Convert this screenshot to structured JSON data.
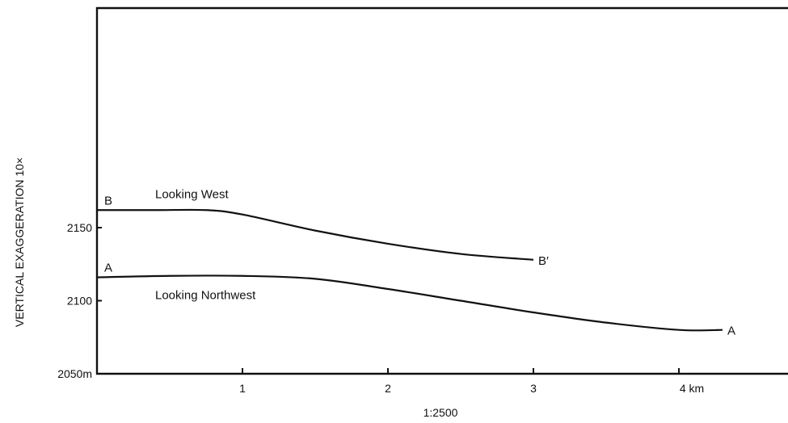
{
  "chart_data": {
    "type": "line",
    "title": "",
    "xlabel": "1:2500",
    "ylabel": "VERTICAL EXAGGERATION 10×",
    "xlim": [
      0,
      4.75
    ],
    "ylim": [
      2050,
      2250
    ],
    "x_ticks": [
      {
        "value": 1,
        "label": "1"
      },
      {
        "value": 2,
        "label": "2"
      },
      {
        "value": 3,
        "label": "3"
      },
      {
        "value": 4,
        "label": "4 km"
      }
    ],
    "y_ticks": [
      {
        "value": 2050,
        "label": "2050m"
      },
      {
        "value": 2100,
        "label": "2100"
      },
      {
        "value": 2150,
        "label": "2150"
      }
    ],
    "grid": false,
    "series": [
      {
        "name": "Looking West",
        "start_label": "B",
        "end_label": "B′",
        "color": "#111111",
        "x": [
          0,
          0.4,
          0.75,
          1.0,
          1.5,
          2.0,
          2.5,
          3.0
        ],
        "y": [
          2162,
          2162,
          2162,
          2159,
          2148,
          2139,
          2132,
          2128
        ]
      },
      {
        "name": "Looking Northwest",
        "start_label": "A",
        "end_label": "A",
        "color": "#111111",
        "x": [
          0,
          0.5,
          1.0,
          1.5,
          2.0,
          2.5,
          3.0,
          3.5,
          4.0,
          4.3
        ],
        "y": [
          2116,
          2117,
          2117,
          2115,
          2108,
          2100,
          2092,
          2085,
          2080,
          2080
        ]
      }
    ]
  }
}
